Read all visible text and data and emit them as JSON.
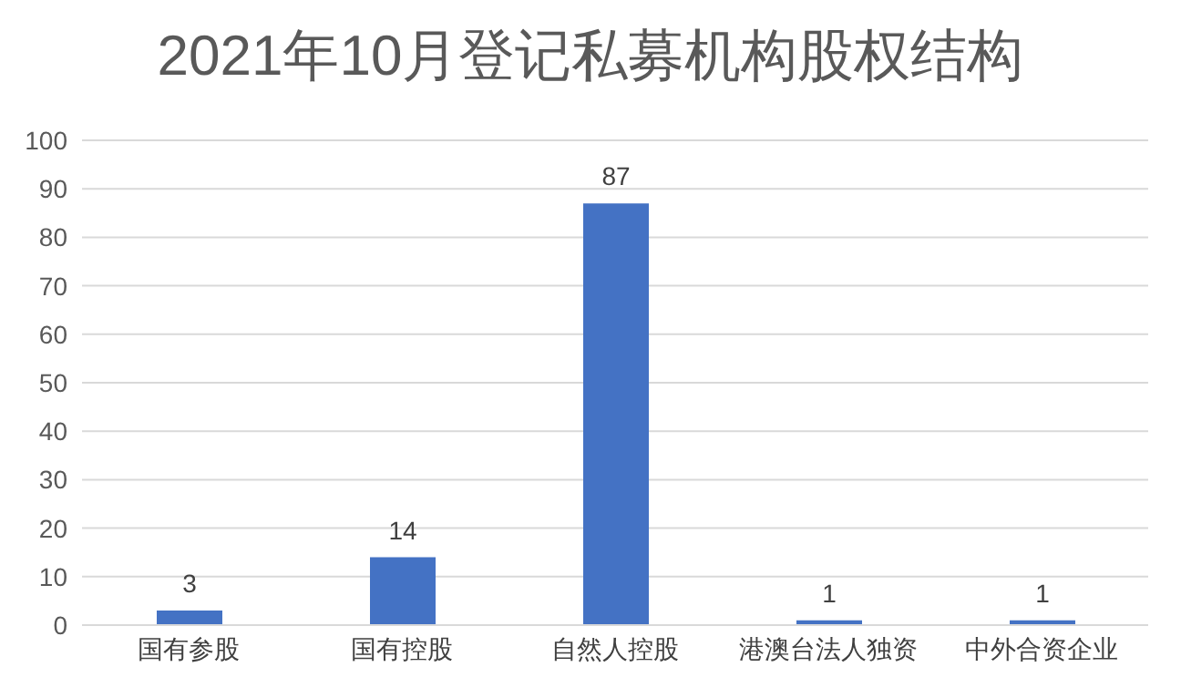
{
  "chart_data": {
    "type": "bar",
    "title": "2021年10月登记私募机构股权结构",
    "categories": [
      "国有参股",
      "国有控股",
      "自然人控股",
      "港澳台法人独资",
      "中外合资企业"
    ],
    "values": [
      3,
      14,
      87,
      1,
      1
    ],
    "color": "#4472c4",
    "ylim": [
      0,
      100
    ],
    "yticks": [
      0,
      10,
      20,
      30,
      40,
      50,
      60,
      70,
      80,
      90,
      100
    ],
    "grid": "y",
    "data_labels": true
  }
}
